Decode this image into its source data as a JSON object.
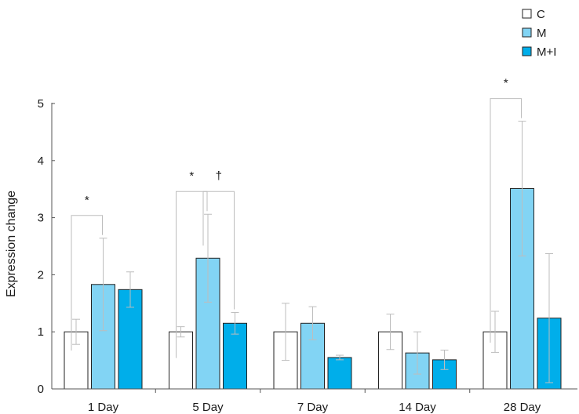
{
  "chart_data": {
    "type": "bar",
    "title": "",
    "xlabel": "",
    "ylabel": "Expression change",
    "ylim": [
      0,
      5
    ],
    "yticks": [
      "0",
      "1",
      "2",
      "3",
      "4",
      "5"
    ],
    "categories": [
      "1 Day",
      "5 Day",
      "7 Day",
      "14 Day",
      "28 Day"
    ],
    "series": [
      {
        "name": "C",
        "color": "#ffffff",
        "values": [
          1.0,
          1.0,
          1.0,
          1.0,
          1.0
        ],
        "errors": [
          0.22,
          0.09,
          0.5,
          0.31,
          0.36
        ]
      },
      {
        "name": "M",
        "color": "#82d4f4",
        "values": [
          1.83,
          2.29,
          1.15,
          0.63,
          3.51
        ],
        "errors": [
          0.81,
          0.77,
          0.29,
          0.37,
          1.18
        ]
      },
      {
        "name": "M+I",
        "color": "#00aeea",
        "values": [
          1.74,
          1.15,
          0.55,
          0.51,
          1.24
        ],
        "errors": [
          0.31,
          0.19,
          0.04,
          0.17,
          1.13
        ]
      }
    ],
    "legend": {
      "position": "top-right",
      "entries": [
        "C",
        "M",
        "M+I"
      ]
    },
    "grid": false,
    "annotations": [
      {
        "category": "1 Day",
        "between": [
          "C",
          "M"
        ],
        "text": "*"
      },
      {
        "category": "5 Day",
        "between": [
          "C",
          "M"
        ],
        "text": "*"
      },
      {
        "category": "5 Day",
        "between": [
          "M",
          "M+I"
        ],
        "text": "†"
      },
      {
        "category": "28 Day",
        "between": [
          "C",
          "M"
        ],
        "text": "*"
      }
    ]
  }
}
